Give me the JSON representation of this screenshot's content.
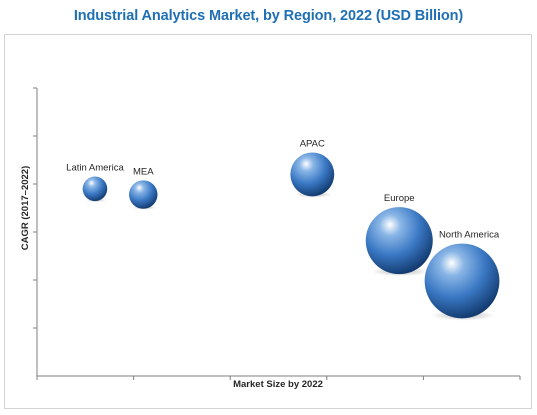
{
  "chart_data": {
    "type": "scatter",
    "title": "Industrial Analytics Market, by Region, 2022 (USD Billion)",
    "xlabel": "Market Size by 2022",
    "ylabel": "CAGR (2017–2022)",
    "xlim": [
      0,
      100
    ],
    "ylim": [
      0,
      100
    ],
    "grid": false,
    "legend": "none",
    "bubble_color": "#3a78c4",
    "series": [
      {
        "points": [
          {
            "label": "Latin America",
            "x": 12,
            "y": 65,
            "size": 3
          },
          {
            "label": "MEA",
            "x": 22,
            "y": 63,
            "size": 4
          },
          {
            "label": "APAC",
            "x": 57,
            "y": 70,
            "size": 8
          },
          {
            "label": "Europe",
            "x": 75,
            "y": 47,
            "size": 14
          },
          {
            "label": "North America",
            "x": 88,
            "y": 33,
            "size": 16
          }
        ]
      }
    ]
  }
}
